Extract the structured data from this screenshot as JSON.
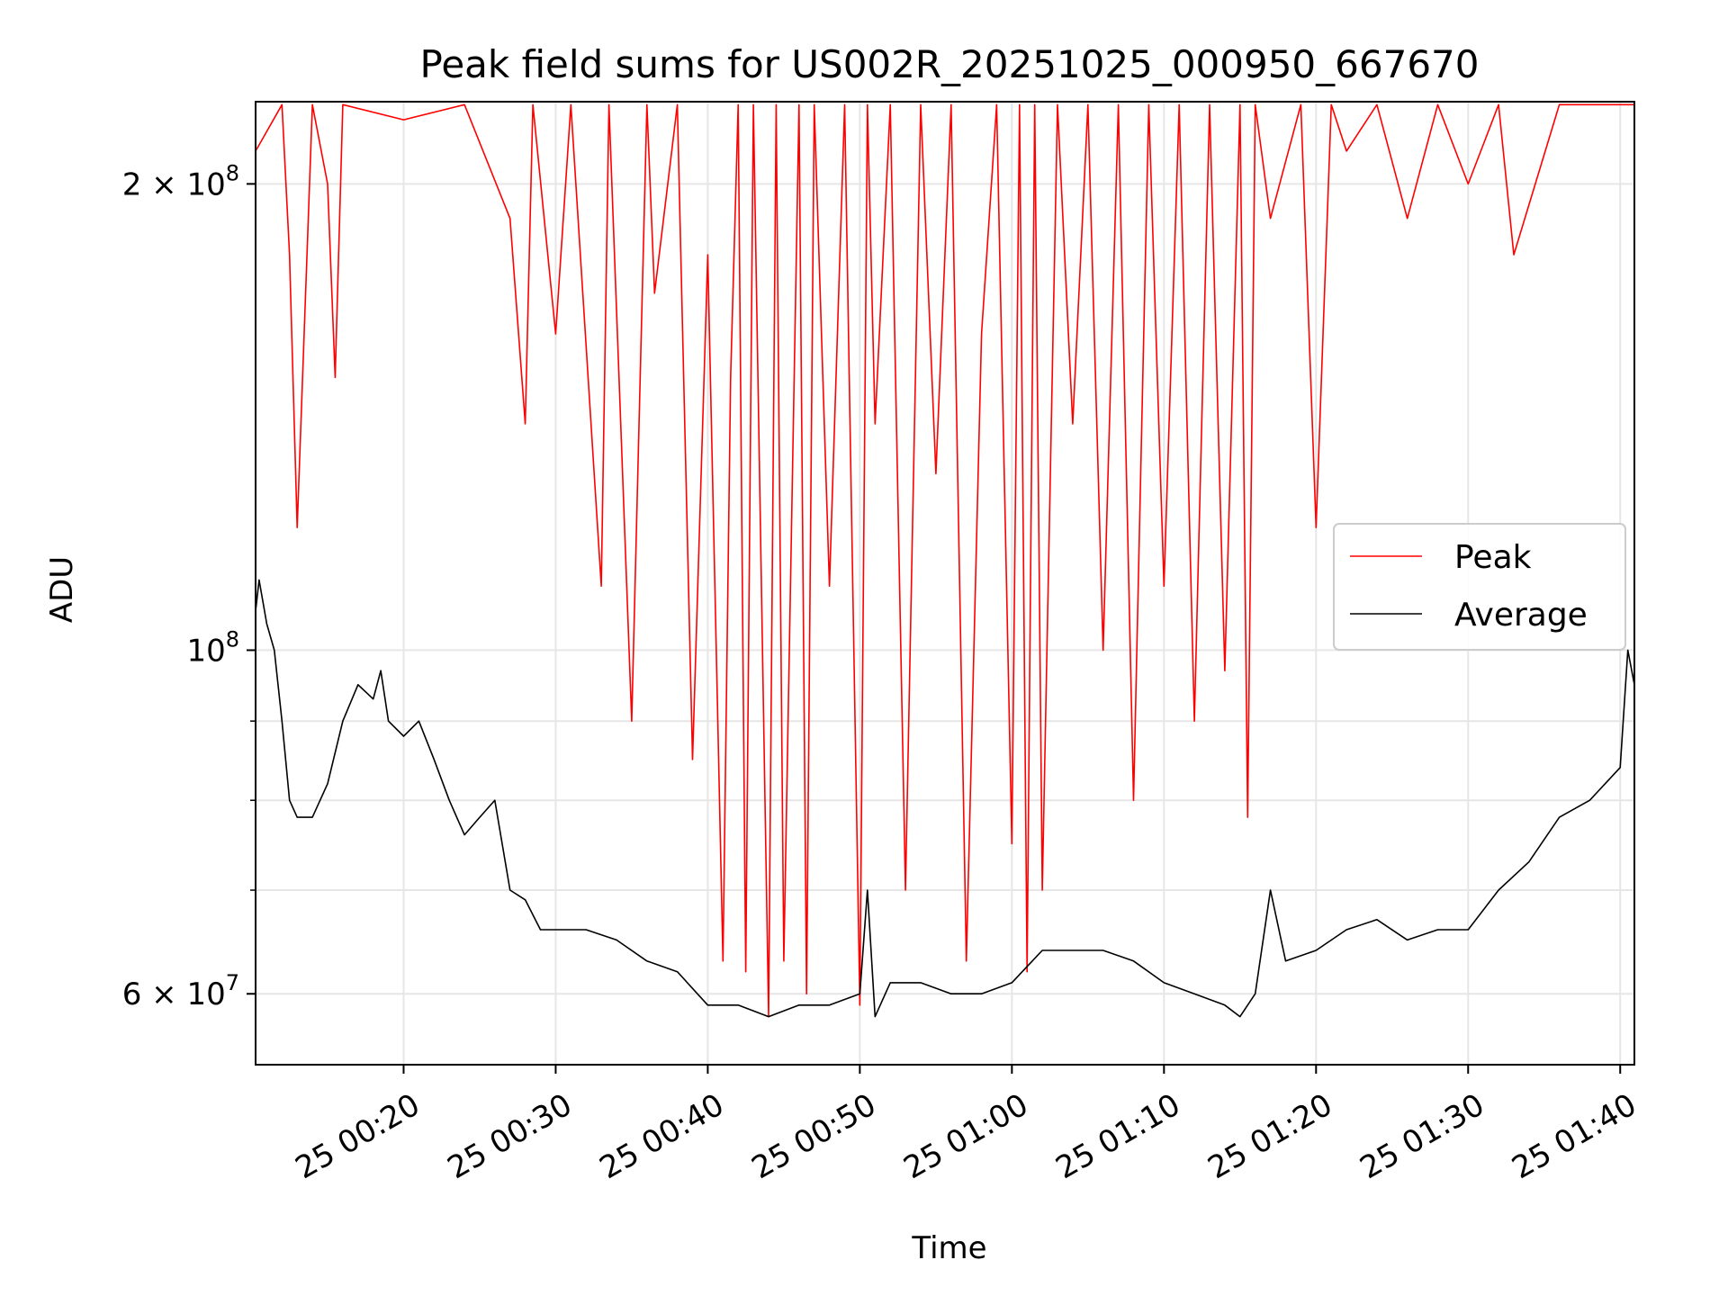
{
  "chart_data": {
    "type": "line",
    "title": "Peak field sums for US002R_20251025_000950_667670",
    "xlabel": "Time",
    "ylabel": "ADU",
    "x_range": [
      "2025-10-25 00:10:16",
      "2025-10-25 01:40:56"
    ],
    "ylim": [
      54000000,
      226000000
    ],
    "y_scale": "log",
    "grid": true,
    "legend_placement": "center-right",
    "x_ticks": [
      {
        "t": "2025-10-25 00:20",
        "label": "25 00:20"
      },
      {
        "t": "2025-10-25 00:30",
        "label": "25 00:30"
      },
      {
        "t": "2025-10-25 00:40",
        "label": "25 00:40"
      },
      {
        "t": "2025-10-25 00:50",
        "label": "25 00:50"
      },
      {
        "t": "2025-10-25 01:00",
        "label": "25 01:00"
      },
      {
        "t": "2025-10-25 01:10",
        "label": "25 01:10"
      },
      {
        "t": "2025-10-25 01:20",
        "label": "25 01:20"
      },
      {
        "t": "2025-10-25 01:30",
        "label": "25 01:30"
      },
      {
        "t": "2025-10-25 01:40",
        "label": "25 01:40"
      }
    ],
    "y_ticks": [
      {
        "value": 60000000,
        "base": "6 × 10",
        "exp": "7"
      },
      {
        "value": 100000000,
        "base": "10",
        "exp": "8"
      },
      {
        "value": 200000000,
        "base": "2 × 10",
        "exp": "8"
      }
    ],
    "y_minor_ticks": [
      70000000,
      80000000,
      90000000
    ],
    "series": [
      {
        "name": "Peak",
        "color": "#ff0000",
        "x": [
          "2025-10-25 00:10:16",
          "2025-10-25 00:12:00",
          "2025-10-25 00:12:30",
          "2025-10-25 00:13:00",
          "2025-10-25 00:14:00",
          "2025-10-25 00:15:00",
          "2025-10-25 00:15:30",
          "2025-10-25 00:16:00",
          "2025-10-25 00:20:00",
          "2025-10-25 00:24:00",
          "2025-10-25 00:27:00",
          "2025-10-25 00:28:00",
          "2025-10-25 00:28:30",
          "2025-10-25 00:30:00",
          "2025-10-25 00:31:00",
          "2025-10-25 00:33:00",
          "2025-10-25 00:33:30",
          "2025-10-25 00:35:00",
          "2025-10-25 00:36:00",
          "2025-10-25 00:36:30",
          "2025-10-25 00:38:00",
          "2025-10-25 00:39:00",
          "2025-10-25 00:40:00",
          "2025-10-25 00:41:00",
          "2025-10-25 00:41:30",
          "2025-10-25 00:42:00",
          "2025-10-25 00:42:30",
          "2025-10-25 00:43:00",
          "2025-10-25 00:44:00",
          "2025-10-25 00:44:30",
          "2025-10-25 00:45:00",
          "2025-10-25 00:46:00",
          "2025-10-25 00:46:30",
          "2025-10-25 00:47:00",
          "2025-10-25 00:48:00",
          "2025-10-25 00:49:00",
          "2025-10-25 00:50:00",
          "2025-10-25 00:50:30",
          "2025-10-25 00:51:00",
          "2025-10-25 00:52:00",
          "2025-10-25 00:53:00",
          "2025-10-25 00:54:00",
          "2025-10-25 00:55:00",
          "2025-10-25 00:56:00",
          "2025-10-25 00:57:00",
          "2025-10-25 00:58:00",
          "2025-10-25 00:59:00",
          "2025-10-25 01:00:00",
          "2025-10-25 01:00:30",
          "2025-10-25 01:01:00",
          "2025-10-25 01:01:30",
          "2025-10-25 01:02:00",
          "2025-10-25 01:03:00",
          "2025-10-25 01:04:00",
          "2025-10-25 01:05:00",
          "2025-10-25 01:06:00",
          "2025-10-25 01:07:00",
          "2025-10-25 01:08:00",
          "2025-10-25 01:09:00",
          "2025-10-25 01:10:00",
          "2025-10-25 01:11:00",
          "2025-10-25 01:12:00",
          "2025-10-25 01:13:00",
          "2025-10-25 01:14:00",
          "2025-10-25 01:15:00",
          "2025-10-25 01:15:30",
          "2025-10-25 01:16:00",
          "2025-10-25 01:17:00",
          "2025-10-25 01:19:00",
          "2025-10-25 01:20:00",
          "2025-10-25 01:21:00",
          "2025-10-25 01:22:00",
          "2025-10-25 01:24:00",
          "2025-10-25 01:26:00",
          "2025-10-25 01:28:00",
          "2025-10-25 01:30:00",
          "2025-10-25 01:32:00",
          "2025-10-25 01:33:00",
          "2025-10-25 01:36:00",
          "2025-10-25 01:40:56"
        ],
        "values": [
          210000000,
          225000000,
          180000000,
          120000000,
          225000000,
          200000000,
          150000000,
          225000000,
          220000000,
          225000000,
          190000000,
          140000000,
          225000000,
          160000000,
          225000000,
          110000000,
          225000000,
          90000000,
          225000000,
          170000000,
          225000000,
          85000000,
          180000000,
          63000000,
          150000000,
          225000000,
          62000000,
          225000000,
          58000000,
          225000000,
          63000000,
          225000000,
          60000000,
          225000000,
          110000000,
          225000000,
          59000000,
          225000000,
          140000000,
          225000000,
          70000000,
          225000000,
          130000000,
          225000000,
          63000000,
          160000000,
          225000000,
          75000000,
          225000000,
          62000000,
          225000000,
          70000000,
          225000000,
          140000000,
          225000000,
          100000000,
          225000000,
          80000000,
          225000000,
          110000000,
          225000000,
          90000000,
          225000000,
          97000000,
          225000000,
          78000000,
          225000000,
          190000000,
          225000000,
          120000000,
          225000000,
          210000000,
          225000000,
          190000000,
          225000000,
          200000000,
          225000000,
          180000000,
          225000000,
          225000000
        ]
      },
      {
        "name": "Average",
        "color": "#000000",
        "x": [
          "2025-10-25 00:10:16",
          "2025-10-25 00:10:30",
          "2025-10-25 00:11:00",
          "2025-10-25 00:11:30",
          "2025-10-25 00:12:00",
          "2025-10-25 00:12:30",
          "2025-10-25 00:13:00",
          "2025-10-25 00:14:00",
          "2025-10-25 00:15:00",
          "2025-10-25 00:16:00",
          "2025-10-25 00:17:00",
          "2025-10-25 00:18:00",
          "2025-10-25 00:18:30",
          "2025-10-25 00:19:00",
          "2025-10-25 00:20:00",
          "2025-10-25 00:21:00",
          "2025-10-25 00:22:00",
          "2025-10-25 00:23:00",
          "2025-10-25 00:24:00",
          "2025-10-25 00:25:00",
          "2025-10-25 00:26:00",
          "2025-10-25 00:27:00",
          "2025-10-25 00:28:00",
          "2025-10-25 00:29:00",
          "2025-10-25 00:30:00",
          "2025-10-25 00:32:00",
          "2025-10-25 00:34:00",
          "2025-10-25 00:36:00",
          "2025-10-25 00:38:00",
          "2025-10-25 00:40:00",
          "2025-10-25 00:42:00",
          "2025-10-25 00:44:00",
          "2025-10-25 00:46:00",
          "2025-10-25 00:48:00",
          "2025-10-25 00:50:00",
          "2025-10-25 00:50:30",
          "2025-10-25 00:51:00",
          "2025-10-25 00:52:00",
          "2025-10-25 00:54:00",
          "2025-10-25 00:56:00",
          "2025-10-25 00:58:00",
          "2025-10-25 01:00:00",
          "2025-10-25 01:02:00",
          "2025-10-25 01:04:00",
          "2025-10-25 01:06:00",
          "2025-10-25 01:08:00",
          "2025-10-25 01:10:00",
          "2025-10-25 01:12:00",
          "2025-10-25 01:14:00",
          "2025-10-25 01:15:00",
          "2025-10-25 01:16:00",
          "2025-10-25 01:17:00",
          "2025-10-25 01:18:00",
          "2025-10-25 01:20:00",
          "2025-10-25 01:22:00",
          "2025-10-25 01:24:00",
          "2025-10-25 01:26:00",
          "2025-10-25 01:28:00",
          "2025-10-25 01:30:00",
          "2025-10-25 01:32:00",
          "2025-10-25 01:34:00",
          "2025-10-25 01:36:00",
          "2025-10-25 01:38:00",
          "2025-10-25 01:40:00",
          "2025-10-25 01:40:30",
          "2025-10-25 01:40:56"
        ],
        "values": [
          106000000,
          111000000,
          104000000,
          100000000,
          90000000,
          80000000,
          78000000,
          78000000,
          82000000,
          90000000,
          95000000,
          93000000,
          97000000,
          90000000,
          88000000,
          90000000,
          85000000,
          80000000,
          76000000,
          78000000,
          80000000,
          70000000,
          69000000,
          66000000,
          66000000,
          66000000,
          65000000,
          63000000,
          62000000,
          59000000,
          59000000,
          58000000,
          59000000,
          59000000,
          60000000,
          70000000,
          58000000,
          61000000,
          61000000,
          60000000,
          60000000,
          61000000,
          64000000,
          64000000,
          64000000,
          63000000,
          61000000,
          60000000,
          59000000,
          58000000,
          60000000,
          70000000,
          63000000,
          64000000,
          66000000,
          67000000,
          65000000,
          66000000,
          66000000,
          70000000,
          73000000,
          78000000,
          80000000,
          84000000,
          100000000,
          95000000
        ]
      }
    ]
  }
}
